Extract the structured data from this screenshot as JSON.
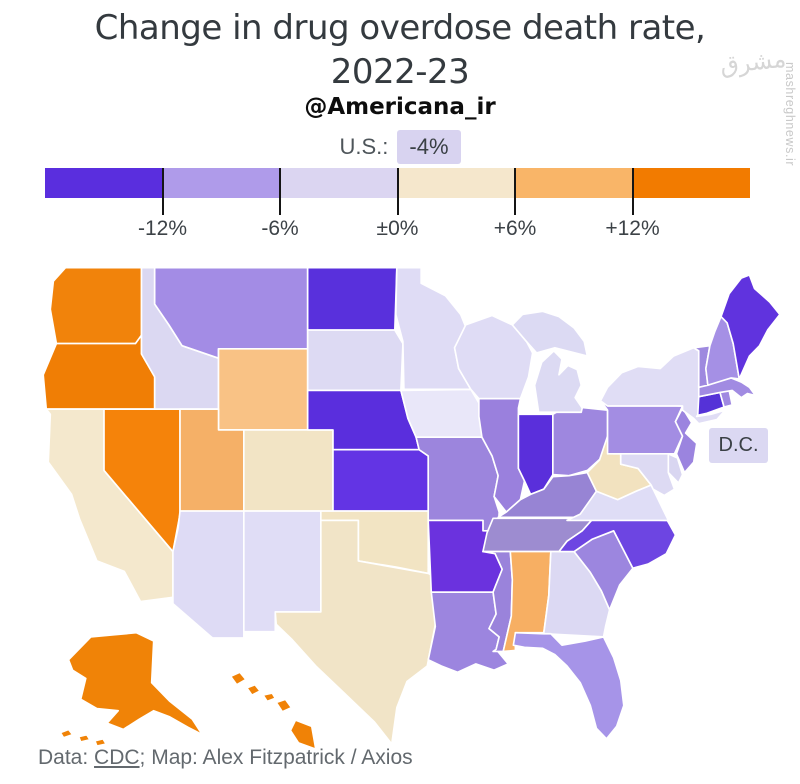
{
  "title": {
    "line1": "Change in drug overdose death rate,",
    "line2": "2022-23"
  },
  "subtitle": "@Americana_ir",
  "us_overall": {
    "label": "U.S.:",
    "value": "-4%",
    "chip_color": "#D8D3F0"
  },
  "legend": {
    "bins": [
      {
        "range": "< -12%",
        "color": "#5A2EDE"
      },
      {
        "range": "-12% to -6%",
        "color": "#AF9BEA"
      },
      {
        "range": "-6% to 0%",
        "color": "#DBD5F1"
      },
      {
        "range": "0% to +6%",
        "color": "#F5E7CC"
      },
      {
        "range": "+6% to +12%",
        "color": "#F9B568"
      },
      {
        "range": "> +12%",
        "color": "#F27B00"
      }
    ],
    "ticks": [
      "-12%",
      "-6%",
      "±0%",
      "+6%",
      "+12%"
    ]
  },
  "map": {
    "dc_label": "D.C.",
    "dc_fill": "#DBD8F2",
    "states": [
      {
        "id": "WA",
        "name": "Washington",
        "bin": "> +12%",
        "color": "#F1830B"
      },
      {
        "id": "OR",
        "name": "Oregon",
        "bin": "> +12%",
        "color": "#F07E05"
      },
      {
        "id": "CA",
        "name": "California",
        "bin": "0% to +6%",
        "color": "#F4E8CD"
      },
      {
        "id": "NV",
        "name": "Nevada",
        "bin": "> +12%",
        "color": "#F5830A"
      },
      {
        "id": "ID",
        "name": "Idaho",
        "bin": "-6% to 0%",
        "color": "#DBD8F2"
      },
      {
        "id": "MT",
        "name": "Montana",
        "bin": "-12% to -6%",
        "color": "#A38CE5"
      },
      {
        "id": "WY",
        "name": "Wyoming",
        "bin": "+6% to +12%",
        "color": "#F9C285"
      },
      {
        "id": "UT",
        "name": "Utah",
        "bin": "+6% to +12%",
        "color": "#F5B067"
      },
      {
        "id": "CO",
        "name": "Colorado",
        "bin": "0% to +6%",
        "color": "#F2E4C5"
      },
      {
        "id": "AZ",
        "name": "Arizona",
        "bin": "-6% to 0%",
        "color": "#DEDBF5"
      },
      {
        "id": "NM",
        "name": "New Mexico",
        "bin": "-6% to 0%",
        "color": "#E0DDF6"
      },
      {
        "id": "ND",
        "name": "North Dakota",
        "bin": "< -12%",
        "color": "#5930DC"
      },
      {
        "id": "SD",
        "name": "South Dakota",
        "bin": "-6% to 0%",
        "color": "#DDDAF3"
      },
      {
        "id": "NE",
        "name": "Nebraska",
        "bin": "< -12%",
        "color": "#5A2EDD"
      },
      {
        "id": "KS",
        "name": "Kansas",
        "bin": "< -12%",
        "color": "#6334E4"
      },
      {
        "id": "OK",
        "name": "Oklahoma",
        "bin": "0% to +6%",
        "color": "#F2E4C3"
      },
      {
        "id": "TX",
        "name": "Texas",
        "bin": "0% to +6%",
        "color": "#F1E4C7"
      },
      {
        "id": "MN",
        "name": "Minnesota",
        "bin": "-6% to 0%",
        "color": "#DFDCF5"
      },
      {
        "id": "IA",
        "name": "Iowa",
        "bin": "-6% to 0%",
        "color": "#E9E7F9"
      },
      {
        "id": "MO",
        "name": "Missouri",
        "bin": "-12% to -6%",
        "color": "#9C85DD"
      },
      {
        "id": "AR",
        "name": "Arkansas",
        "bin": "< -12%",
        "color": "#6B32DE"
      },
      {
        "id": "LA",
        "name": "Louisiana",
        "bin": "-12% to -6%",
        "color": "#9C85DF"
      },
      {
        "id": "WI",
        "name": "Wisconsin",
        "bin": "-6% to 0%",
        "color": "#DFDCF5"
      },
      {
        "id": "IL",
        "name": "Illinois",
        "bin": "-12% to -6%",
        "color": "#9A80DD"
      },
      {
        "id": "MI",
        "name": "Michigan",
        "bin": "-6% to 0%",
        "color": "#DCDAF3"
      },
      {
        "id": "IN",
        "name": "Indiana",
        "bin": "< -12%",
        "color": "#5A2FDB"
      },
      {
        "id": "OH",
        "name": "Ohio",
        "bin": "-12% to -6%",
        "color": "#9E87DF"
      },
      {
        "id": "KY",
        "name": "Kentucky",
        "bin": "-12% to -6%",
        "color": "#9784D4"
      },
      {
        "id": "TN",
        "name": "Tennessee",
        "bin": "-12% to -6%",
        "color": "#9D8CD0"
      },
      {
        "id": "MS",
        "name": "Mississippi",
        "bin": "-12% to -6%",
        "color": "#9A83DB"
      },
      {
        "id": "AL",
        "name": "Alabama",
        "bin": "+6% to +12%",
        "color": "#F7AF63"
      },
      {
        "id": "GA",
        "name": "Georgia",
        "bin": "-6% to 0%",
        "color": "#DCD9F3"
      },
      {
        "id": "SC",
        "name": "South Carolina",
        "bin": "-12% to -6%",
        "color": "#9C86DF"
      },
      {
        "id": "NC",
        "name": "North Carolina",
        "bin": "< -12%",
        "color": "#6D45E2"
      },
      {
        "id": "VA",
        "name": "Virginia",
        "bin": "-6% to 0%",
        "color": "#DFDDF6"
      },
      {
        "id": "WV",
        "name": "West Virginia",
        "bin": "0% to +6%",
        "color": "#F2E2BF"
      },
      {
        "id": "FL",
        "name": "Florida",
        "bin": "-12% to -6%",
        "color": "#A694E8"
      },
      {
        "id": "PA",
        "name": "Pennsylvania",
        "bin": "-12% to -6%",
        "color": "#A38DE3"
      },
      {
        "id": "NJ",
        "name": "New Jersey",
        "bin": "-12% to -6%",
        "color": "#9B84DF"
      },
      {
        "id": "NY",
        "name": "New York",
        "bin": "-6% to 0%",
        "color": "#E0DDF5"
      },
      {
        "id": "CT",
        "name": "Connecticut",
        "bin": "< -12%",
        "color": "#5532D7"
      },
      {
        "id": "RI",
        "name": "Rhode Island",
        "bin": "-12% to -6%",
        "color": "#A089E1"
      },
      {
        "id": "MA",
        "name": "Massachusetts",
        "bin": "-12% to -6%",
        "color": "#A18BE2"
      },
      {
        "id": "VT",
        "name": "Vermont",
        "bin": "-12% to -6%",
        "color": "#9E89DF"
      },
      {
        "id": "NH",
        "name": "New Hampshire",
        "bin": "-12% to -6%",
        "color": "#A590E5"
      },
      {
        "id": "ME",
        "name": "Maine",
        "bin": "< -12%",
        "color": "#6033DE"
      },
      {
        "id": "MD",
        "name": "Maryland",
        "bin": "-6% to 0%",
        "color": "#DDDAF3"
      },
      {
        "id": "DE",
        "name": "Delaware",
        "bin": "-6% to 0%",
        "color": "#D9D6F1"
      },
      {
        "id": "AK",
        "name": "Alaska",
        "bin": "> +12%",
        "color": "#F08307"
      },
      {
        "id": "HI",
        "name": "Hawaii",
        "bin": "> +12%",
        "color": "#F08206"
      }
    ]
  },
  "footer": {
    "prefix": "Data: ",
    "source_link": "CDC",
    "suffix": "; Map: Alex Fitzpatrick / Axios"
  },
  "watermark": {
    "site": "mashreghnews.ir",
    "logo_text": "مشرق"
  },
  "chart_data": {
    "type": "heatmap",
    "subtype": "us-state-choropleth",
    "title": "Change in drug overdose death rate, 2022-23",
    "attribution": "@Americana_ir",
    "us_overall_change": "-4%",
    "unit": "percent change in drug overdose death rate, 2022 to 2023",
    "legend_ticks": [
      "-12%",
      "-6%",
      "±0%",
      "+6%",
      "+12%"
    ],
    "bins": [
      "< -12%",
      "-12% to -6%",
      "-6% to 0%",
      "0% to +6%",
      "+6% to +12%",
      "> +12%"
    ],
    "bin_colors": [
      "#5A2EDE",
      "#AF9BEA",
      "#DBD5F1",
      "#F5E7CC",
      "#F9B568",
      "#F27B00"
    ],
    "state_bins": {
      "< -12%": [
        "North Dakota",
        "Nebraska",
        "Kansas",
        "Indiana",
        "Arkansas",
        "Maine",
        "Connecticut",
        "North Carolina"
      ],
      "-12% to -6%": [
        "Montana",
        "Illinois",
        "Ohio",
        "Missouri",
        "Kentucky",
        "Tennessee",
        "Mississippi",
        "Louisiana",
        "South Carolina",
        "Florida",
        "Pennsylvania",
        "New Jersey",
        "Vermont",
        "New Hampshire",
        "Massachusetts",
        "Rhode Island"
      ],
      "-6% to 0%": [
        "Idaho",
        "South Dakota",
        "Minnesota",
        "Wisconsin",
        "Michigan",
        "Iowa",
        "New York",
        "Virginia",
        "Maryland",
        "Delaware",
        "Georgia",
        "Arizona",
        "New Mexico",
        "District of Columbia"
      ],
      "0% to +6%": [
        "California",
        "Colorado",
        "Oklahoma",
        "Texas",
        "West Virginia"
      ],
      "+6% to +12%": [
        "Wyoming",
        "Utah",
        "Alabama"
      ],
      "> +12%": [
        "Washington",
        "Oregon",
        "Nevada",
        "Alaska",
        "Hawaii"
      ]
    },
    "source": "Data: CDC; Map: Alex Fitzpatrick / Axios"
  }
}
